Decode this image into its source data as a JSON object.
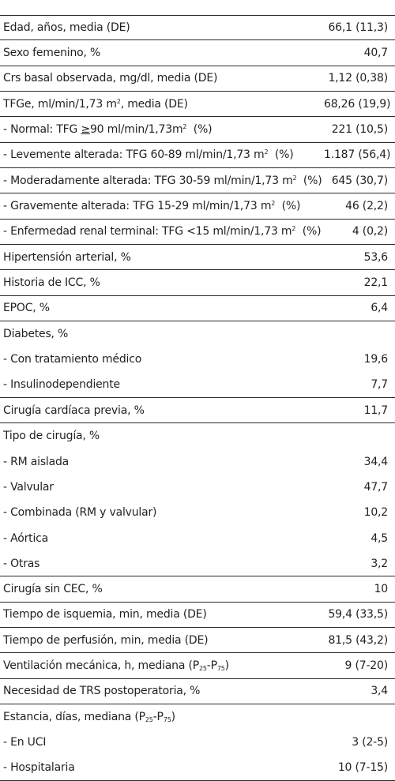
{
  "rows": [
    {
      "label": "Edad, años, media (DE)",
      "value": "66,1 (11,3)"
    },
    {
      "label": "Sexo femenino, %",
      "value": "40,7"
    },
    {
      "label": "Crs basal observada, mg/dl, media (DE)",
      "value": "1,12 (0,38)"
    },
    {
      "label_a": "TFGe, ml/min/1,73 m",
      "label_sup": "2",
      "label_b": ", media (DE)",
      "value": "68,26 (19,9)"
    },
    {
      "label_a": "- Normal: TFG ",
      "label_ge": "≥",
      "label_b": "90 ml/min/1,73m",
      "label_sup": "2",
      "label_c": "  (%)",
      "value": "221 (10,5)"
    },
    {
      "label_a": "- Levemente alterada: TFG 60-89 ml/min/1,73 m",
      "label_sup": "2",
      "label_b": "  (%)",
      "value": "1.187 (56,4)"
    },
    {
      "label_a": "- Moderadamente alterada: TFG 30-59 ml/min/1,73 m",
      "label_sup": "2",
      "label_b": "  (%)",
      "value": "645 (30,7)"
    },
    {
      "label_a": "- Gravemente alterada: TFG 15-29 ml/min/1,73 m",
      "label_sup": "2",
      "label_b": "  (%)",
      "value": "46 (2,2)"
    },
    {
      "label_a": "- Enfermedad renal terminal: TFG <15 ml/min/1,73 m",
      "label_sup": "2",
      "label_b": "  (%)",
      "value": "4 (0,2)"
    },
    {
      "label": "Hipertensión arterial, %",
      "value": "53,6"
    },
    {
      "label": "Historia de ICC, %",
      "value": "22,1"
    },
    {
      "label": "EPOC, %",
      "value": "6,4"
    },
    {
      "label": "Diabetes, %",
      "value": ""
    },
    {
      "label": "- Con tratamiento médico",
      "value": "19,6"
    },
    {
      "label": "- Insulinodependiente",
      "value": "7,7"
    },
    {
      "label": "Cirugía cardíaca previa, %",
      "value": "11,7"
    },
    {
      "label": "Tipo de cirugía, %",
      "value": ""
    },
    {
      "label": "- RM aislada",
      "value": "34,4"
    },
    {
      "label": "- Valvular",
      "value": "47,7"
    },
    {
      "label": "- Combinada (RM y valvular)",
      "value": "10,2"
    },
    {
      "label": "- Aórtica",
      "value": "4,5"
    },
    {
      "label": "- Otras",
      "value": "3,2"
    },
    {
      "label": "Cirugía sin CEC, %",
      "value": "10"
    },
    {
      "label": "Tiempo de isquemia, min, media (DE)",
      "value": "59,4 (33,5)"
    },
    {
      "label": "Tiempo de perfusión, min, media (DE)",
      "value": "81,5 (43,2)"
    },
    {
      "label_a": "Ventilación mecánica, h, mediana (P",
      "label_sub1": "25",
      "label_b": "-P",
      "label_sub2": "75",
      "label_c": ")",
      "value": "9 (7-20)"
    },
    {
      "label": "Necesidad de TRS postoperatoria, %",
      "value": "3,4"
    },
    {
      "label_a": "Estancia, días, mediana (P",
      "label_sub1": "25",
      "label_b": "-P",
      "label_sub2": "75",
      "label_c": ")",
      "value": ""
    },
    {
      "label": "- En UCI",
      "value": "3 (2-5)"
    },
    {
      "label": "- Hospitalaria",
      "value": "10 (7-15)"
    }
  ]
}
